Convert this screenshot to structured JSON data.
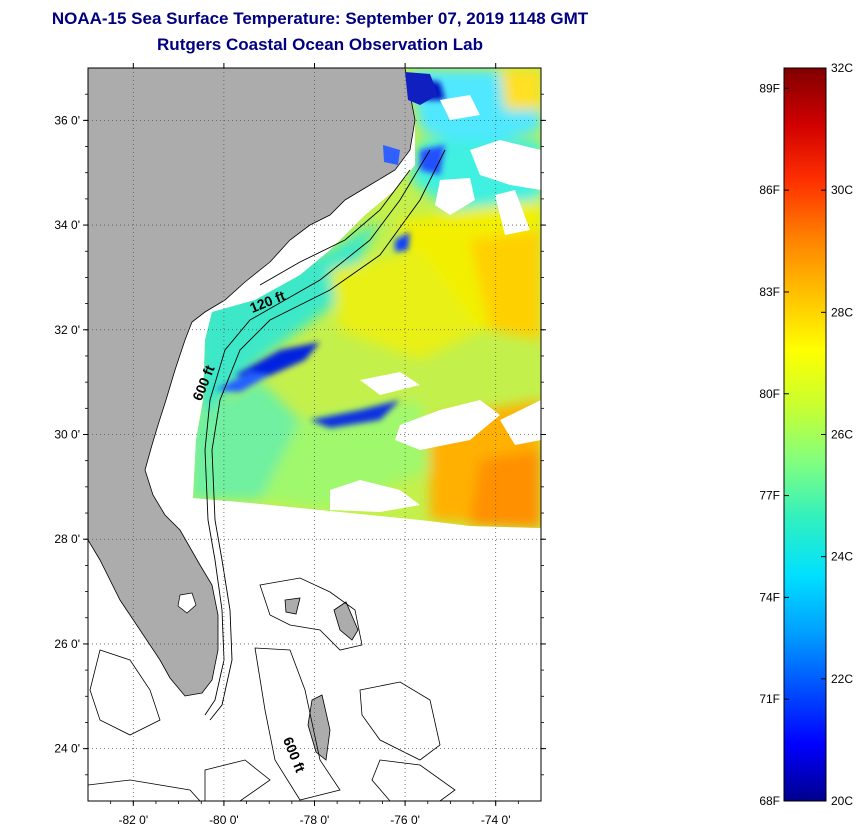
{
  "title": "NOAA-15 Sea Surface Temperature:  September 07, 2019 1148 GMT",
  "subtitle": "Rutgers Coastal Ocean Observation Lab",
  "map": {
    "lat_ticks": [
      {
        "v": 36,
        "label": "36 0'"
      },
      {
        "v": 34,
        "label": "34 0'"
      },
      {
        "v": 32,
        "label": "32 0'"
      },
      {
        "v": 30,
        "label": "30 0'"
      },
      {
        "v": 28,
        "label": "28 0'"
      },
      {
        "v": 26,
        "label": "26 0'"
      },
      {
        "v": 24,
        "label": "24 0'"
      }
    ],
    "lon_ticks": [
      {
        "v": -82,
        "label": "-82 0'"
      },
      {
        "v": -80,
        "label": "-80 0'"
      },
      {
        "v": -78,
        "label": "-78 0'"
      },
      {
        "v": -76,
        "label": "-76 0'"
      },
      {
        "v": -74,
        "label": "-74 0'"
      }
    ],
    "lon_range": [
      -83.0,
      -73.0
    ],
    "lat_range": [
      23.0,
      37.0
    ],
    "contour_labels": [
      {
        "text": "120 ft",
        "lon": -79.0,
        "lat": 32.45,
        "rot": -22
      },
      {
        "text": "600 ft",
        "lon": -80.35,
        "lat": 30.95,
        "rot": -68
      },
      {
        "text": "600 ft",
        "lon": -78.55,
        "lat": 23.85,
        "rot": 68
      }
    ],
    "colors": {
      "land": "#acacac",
      "water": "#ffffff",
      "cloud": "#ffffff",
      "grid": "#555555"
    }
  },
  "colorbar": {
    "c_labels": [
      {
        "v": 32,
        "label": "32C"
      },
      {
        "v": 30,
        "label": "30C"
      },
      {
        "v": 28,
        "label": "28C"
      },
      {
        "v": 26,
        "label": "26C"
      },
      {
        "v": 24,
        "label": "24C"
      },
      {
        "v": 22,
        "label": "22C"
      },
      {
        "v": 20,
        "label": "20C"
      }
    ],
    "f_labels": [
      {
        "v": 89,
        "label": "89F"
      },
      {
        "v": 86,
        "label": "86F"
      },
      {
        "v": 83,
        "label": "83F"
      },
      {
        "v": 80,
        "label": "80F"
      },
      {
        "v": 77,
        "label": "77F"
      },
      {
        "v": 74,
        "label": "74F"
      },
      {
        "v": 71,
        "label": "71F"
      },
      {
        "v": 68,
        "label": "68F"
      }
    ],
    "range_c": [
      20,
      32
    ],
    "colors": [
      "#00008c",
      "#0000ff",
      "#0050ff",
      "#00a0ff",
      "#00e0ff",
      "#30f0c0",
      "#80ff80",
      "#c8ff30",
      "#ffff00",
      "#ffc000",
      "#ff8000",
      "#ff3000",
      "#d00000",
      "#800000"
    ]
  }
}
